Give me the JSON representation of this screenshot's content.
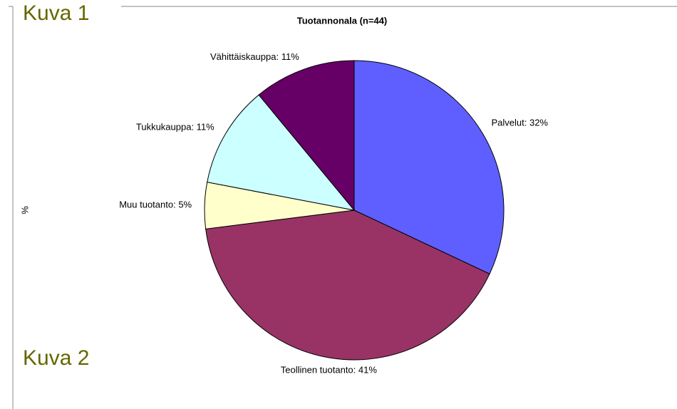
{
  "slide": {
    "label_1": "Kuva 1",
    "label_2": "Kuva 2"
  },
  "chart_data": {
    "type": "pie",
    "title": "Tuotannonala (n=44)",
    "ylabel": "%",
    "values": [
      32,
      41,
      5,
      11,
      11
    ],
    "value_labels": [
      "Palvelut: 32%",
      "Teollinen tuotanto: 41%",
      "Muu tuotanto: 5%",
      "Tukkukauppa: 11%",
      "Vähittäiskauppa: 11%"
    ],
    "colors": [
      "#5f5fff",
      "#993366",
      "#ffffcc",
      "#ccffff",
      "#660066"
    ]
  }
}
